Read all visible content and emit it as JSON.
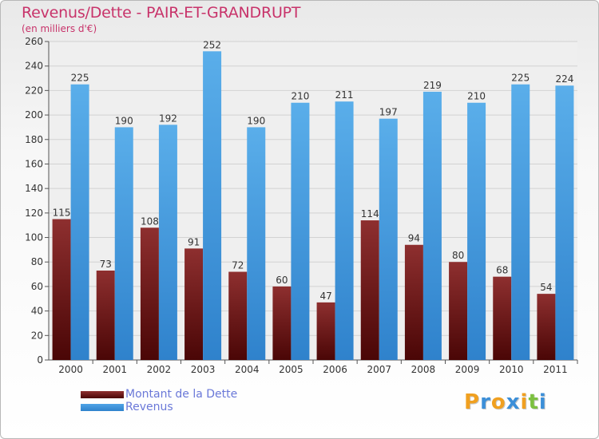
{
  "chart_data": {
    "type": "bar",
    "title": "Revenus/Dette - PAIR-ET-GRANDRUPT",
    "subtitle": "(en milliers d'€)",
    "categories": [
      "2000",
      "2001",
      "2002",
      "2003",
      "2004",
      "2005",
      "2006",
      "2007",
      "2008",
      "2009",
      "2010",
      "2011"
    ],
    "series": [
      {
        "name": "Montant de la Dette",
        "color": "#7a1c1c",
        "values": [
          115,
          73,
          108,
          91,
          72,
          60,
          47,
          114,
          94,
          80,
          68,
          54
        ]
      },
      {
        "name": "Revenus",
        "color": "#4fa3e6",
        "values": [
          225,
          190,
          192,
          252,
          190,
          210,
          211,
          197,
          219,
          210,
          225,
          224
        ]
      }
    ],
    "ylim": [
      0,
      260
    ],
    "ytick_step": 20,
    "yticks": [
      0,
      20,
      40,
      60,
      80,
      100,
      120,
      140,
      160,
      180,
      200,
      220,
      240,
      260
    ],
    "grid": true,
    "xlabel": "",
    "ylabel": ""
  },
  "legend": {
    "items": [
      "Montant de la Dette",
      "Revenus"
    ]
  },
  "brand": {
    "letters": [
      "P",
      "r",
      "o",
      "x",
      "i",
      "t",
      "i"
    ],
    "colors": [
      "#f0a020",
      "#3c8fd8",
      "#f0a020",
      "#3c8fd8",
      "#f0a020",
      "#7cc040",
      "#3c8fd8"
    ]
  }
}
